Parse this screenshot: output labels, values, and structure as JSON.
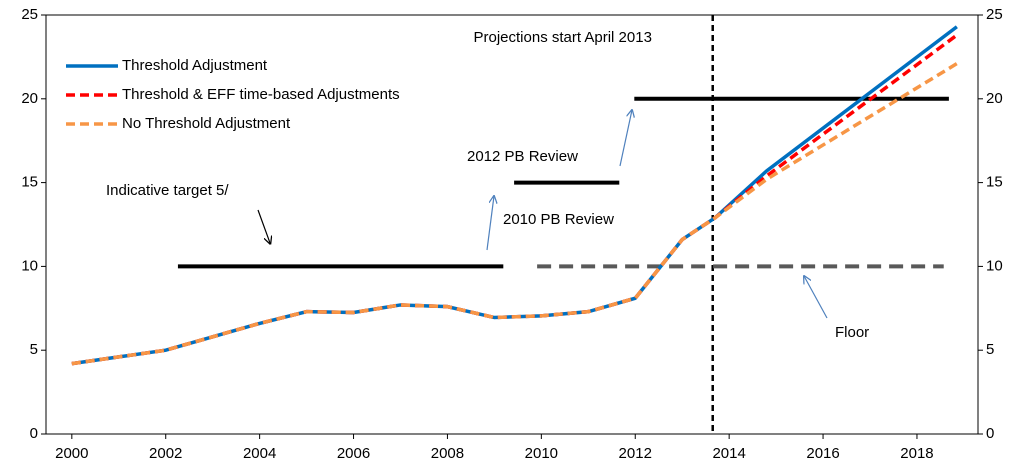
{
  "chart_data": {
    "type": "line",
    "x": [
      2000,
      2001,
      2002,
      2003,
      2004,
      2005,
      2006,
      2007,
      2008,
      2009,
      2010,
      2011,
      2012,
      2013,
      2013.7,
      2014.8,
      2018.85
    ],
    "series": [
      {
        "name": "Threshold Adjustment",
        "color": "#0070c0",
        "dash": false,
        "values": [
          4.2,
          4.6,
          5.0,
          5.8,
          6.6,
          7.3,
          7.25,
          7.7,
          7.6,
          6.95,
          7.05,
          7.3,
          8.1,
          11.6,
          12.9,
          15.7,
          24.3
        ]
      },
      {
        "name": "Threshold & EFF time-based Adjustments",
        "color": "#ff0000",
        "dash": true,
        "values": [
          4.2,
          4.6,
          5.0,
          5.8,
          6.6,
          7.3,
          7.25,
          7.7,
          7.6,
          6.95,
          7.05,
          7.3,
          8.1,
          11.6,
          12.9,
          15.4,
          23.8
        ]
      },
      {
        "name": "No Threshold Adjustment",
        "color": "#f79646",
        "dash": true,
        "values": [
          4.2,
          4.6,
          5.0,
          5.8,
          6.6,
          7.3,
          7.25,
          7.7,
          7.6,
          6.95,
          7.05,
          7.3,
          8.1,
          11.6,
          12.9,
          15.2,
          22.1
        ]
      }
    ],
    "segments": [
      {
        "label": "Indicative target 5/",
        "value": 10,
        "x": [
          2002.26,
          2009.19
        ],
        "color": "#000000",
        "dash": false
      },
      {
        "label": "2010 PB Review",
        "value": 15,
        "x": [
          2009.42,
          2011.66
        ],
        "color": "#000000",
        "dash": false
      },
      {
        "label": "2012 PB Review",
        "value": 20,
        "x": [
          2011.98,
          2018.68
        ],
        "color": "#000000",
        "dash": false
      },
      {
        "label": "Floor",
        "value": 10,
        "x": [
          2009.91,
          2018.57
        ],
        "color": "#595959",
        "dash": true
      }
    ],
    "vline": {
      "x": 2013.65,
      "label": "Projections start April 2013"
    },
    "xlim": [
      1999.45,
      2019.3
    ],
    "xticks": [
      2000,
      2002,
      2004,
      2006,
      2008,
      2010,
      2012,
      2014,
      2016,
      2018
    ],
    "ylim": [
      0,
      25
    ],
    "yticks": [
      0,
      5,
      10,
      15,
      20,
      25
    ],
    "y2lim": [
      0,
      25
    ],
    "y2ticks": [
      0,
      5,
      10,
      15,
      20,
      25
    ],
    "grid": false,
    "legend": "top-left"
  }
}
